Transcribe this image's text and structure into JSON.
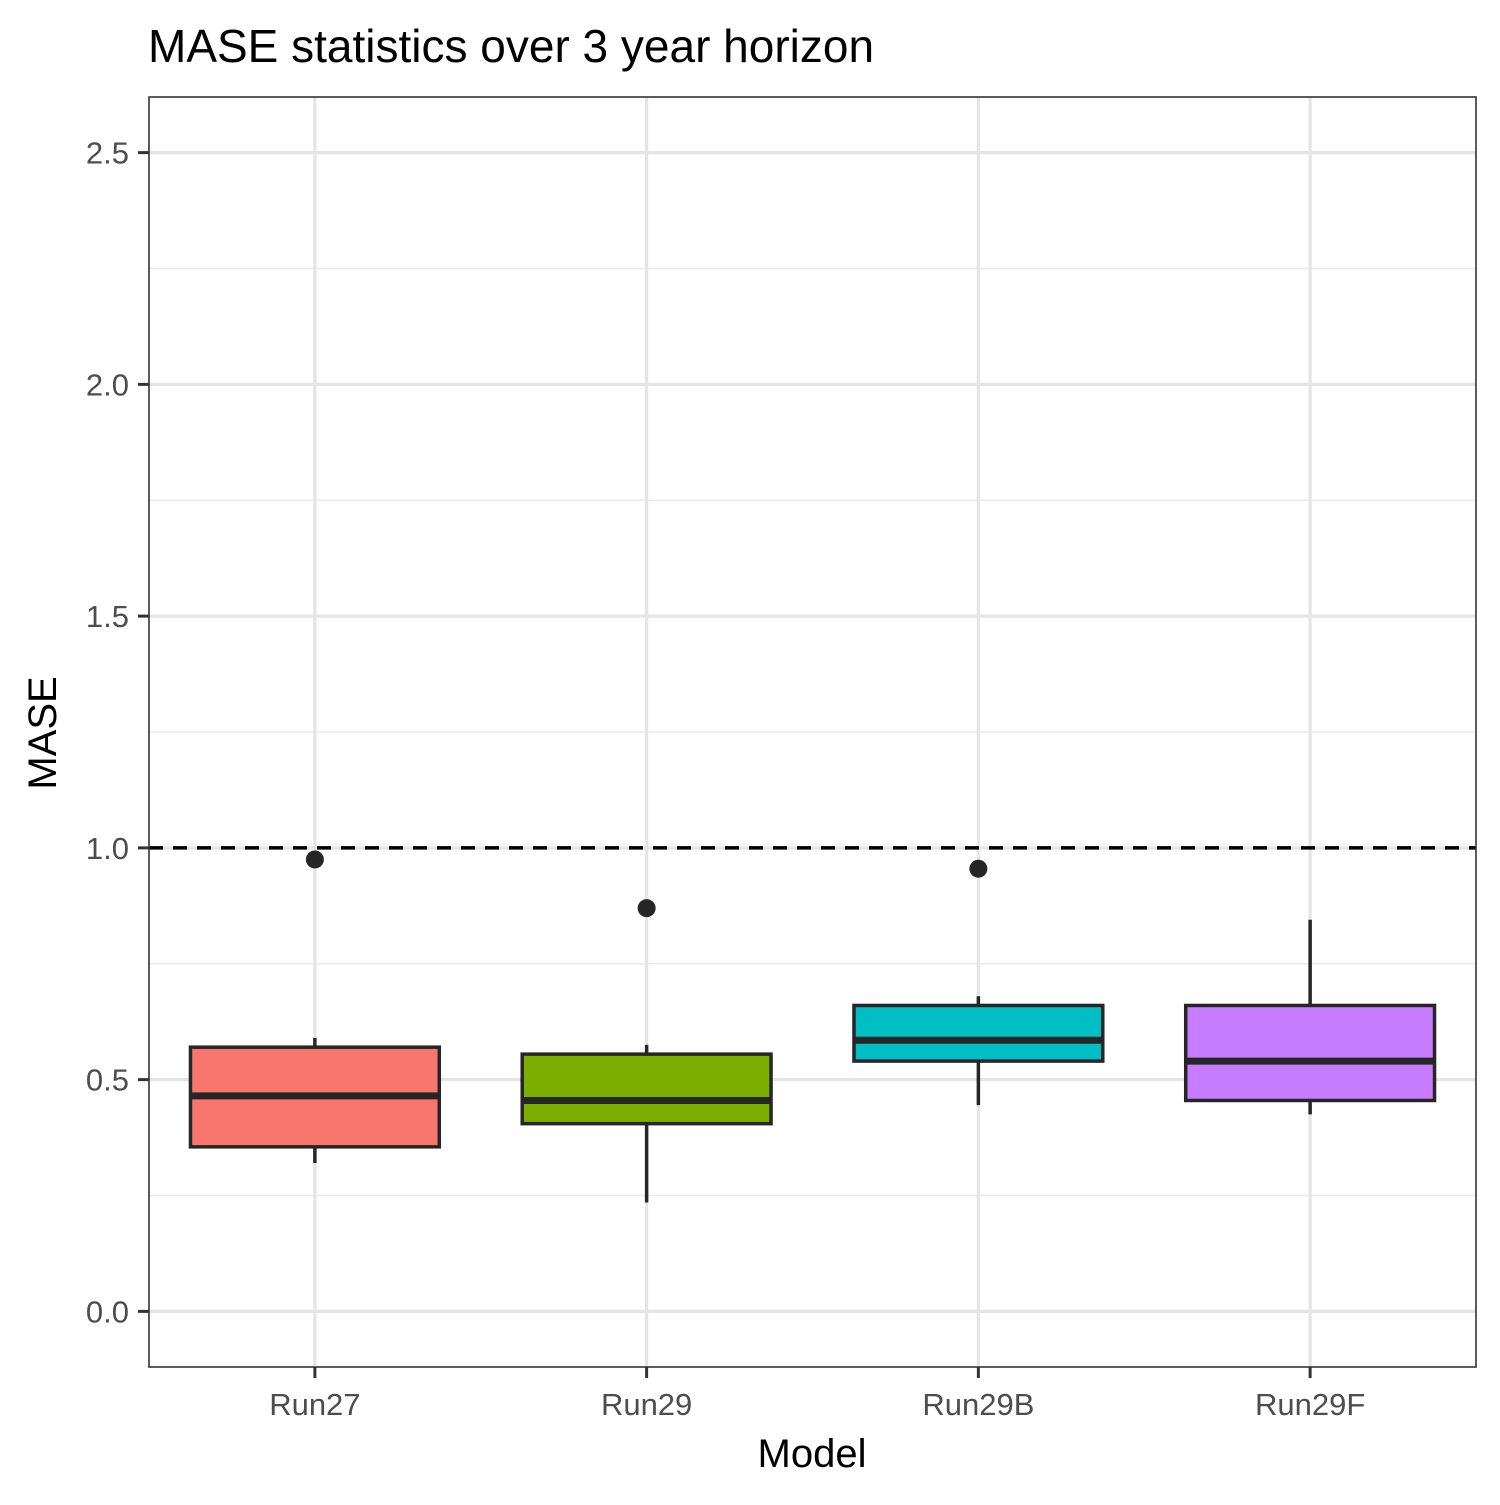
{
  "chart_data": {
    "type": "boxplot",
    "title": "MASE statistics over 3 year horizon",
    "xlabel": "Model",
    "ylabel": "MASE",
    "ylim": [
      -0.12,
      2.62
    ],
    "yticks": [
      0.0,
      0.5,
      1.0,
      1.5,
      2.0,
      2.5
    ],
    "ytick_labels": [
      "0.0",
      "0.5",
      "1.0",
      "1.5",
      "2.0",
      "2.5"
    ],
    "minor_yticks": [
      0.25,
      0.75,
      1.25,
      1.75,
      2.25
    ],
    "grid": true,
    "legend": "none",
    "reference_line": {
      "y": 1.0,
      "style": "dashed",
      "color": "#000000"
    },
    "categories": [
      "Run27",
      "Run29",
      "Run29B",
      "Run29F"
    ],
    "series": [
      {
        "category": "Run27",
        "color": "#F8766D",
        "whisker_low": 0.32,
        "q1": 0.355,
        "median": 0.465,
        "q3": 0.57,
        "whisker_high": 0.59,
        "outliers": [
          0.975
        ]
      },
      {
        "category": "Run29",
        "color": "#7CAE00",
        "whisker_low": 0.235,
        "q1": 0.405,
        "median": 0.455,
        "q3": 0.555,
        "whisker_high": 0.575,
        "outliers": [
          0.87
        ]
      },
      {
        "category": "Run29B",
        "color": "#00BFC4",
        "whisker_low": 0.445,
        "q1": 0.54,
        "median": 0.585,
        "q3": 0.66,
        "whisker_high": 0.68,
        "outliers": [
          0.955
        ]
      },
      {
        "category": "Run29F",
        "color": "#C77CFF",
        "whisker_low": 0.425,
        "q1": 0.455,
        "median": 0.54,
        "q3": 0.66,
        "whisker_high": 0.845,
        "outliers": []
      }
    ]
  }
}
